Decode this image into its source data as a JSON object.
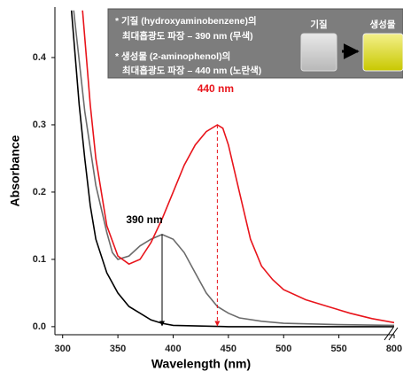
{
  "chart_data": {
    "type": "line",
    "xlabel": "Wavelength (nm)",
    "ylabel": "Absorbance",
    "xlim": [
      293,
      800
    ],
    "x_break": [
      600,
      800
    ],
    "ylim": [
      -0.012,
      0.475
    ],
    "xticks": [
      300,
      350,
      400,
      450,
      500,
      550,
      800
    ],
    "yticks": [
      {
        "value": 0,
        "label": "0.0"
      },
      0.1,
      0.2,
      0.3,
      0.4
    ],
    "series": [
      {
        "color": "#000000",
        "x": [
          308,
          315,
          320,
          325,
          330,
          340,
          350,
          360,
          370,
          380,
          390,
          400,
          450,
          500,
          600
        ],
        "values": [
          0.47,
          0.33,
          0.25,
          0.18,
          0.13,
          0.08,
          0.05,
          0.03,
          0.02,
          0.01,
          0.005,
          0.002,
          0,
          0,
          0
        ]
      },
      {
        "color": "#6b6b6b",
        "x": [
          310,
          320,
          330,
          340,
          345,
          350,
          360,
          370,
          380,
          390,
          400,
          410,
          420,
          430,
          440,
          450,
          460,
          480,
          500,
          550,
          600
        ],
        "values": [
          0.47,
          0.32,
          0.21,
          0.14,
          0.11,
          0.1,
          0.105,
          0.12,
          0.13,
          0.137,
          0.13,
          0.11,
          0.08,
          0.05,
          0.03,
          0.02,
          0.013,
          0.008,
          0.005,
          0.003,
          0.002
        ]
      },
      {
        "color": "#e8141b",
        "x": [
          318,
          325,
          330,
          340,
          350,
          360,
          370,
          380,
          390,
          400,
          410,
          420,
          430,
          440,
          445,
          450,
          460,
          470,
          480,
          490,
          500,
          520,
          540,
          560,
          580,
          600
        ],
        "values": [
          0.47,
          0.33,
          0.25,
          0.15,
          0.105,
          0.093,
          0.1,
          0.125,
          0.16,
          0.2,
          0.24,
          0.27,
          0.29,
          0.3,
          0.295,
          0.27,
          0.2,
          0.13,
          0.09,
          0.07,
          0.055,
          0.04,
          0.03,
          0.02,
          0.012,
          0.006
        ]
      }
    ],
    "annotations": [
      {
        "text": "390 nm",
        "x": 390,
        "y": 0.137,
        "color": "#000000"
      },
      {
        "text": "440 nm",
        "x": 440,
        "y": 0.3,
        "color": "#e8141b"
      }
    ],
    "inset": {
      "lines": [
        "* 기질 (hydroxyaminobenzene)의",
        "최대흡광도 파장 – 390 nm (무색)",
        "* 생성물 (2-aminophenol)의",
        "최대흡광도 파장 – 440 nm (노란색)"
      ],
      "vial_labels": [
        "기질",
        "생성물"
      ]
    }
  }
}
